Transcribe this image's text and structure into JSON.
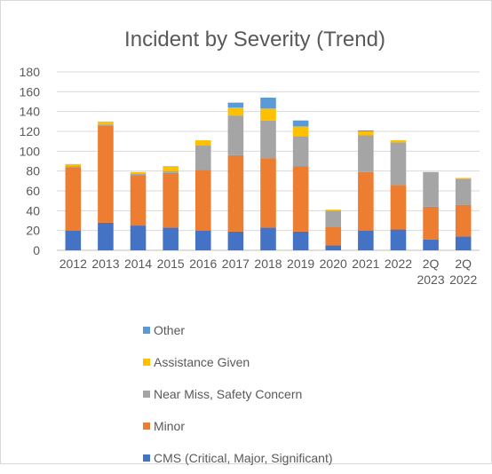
{
  "chart_data": {
    "type": "bar",
    "stacked": true,
    "title": "Incident by Severity (Trend)",
    "xlabel": "",
    "ylabel": "",
    "ylim": [
      0,
      180
    ],
    "y_ticks": [
      0,
      20,
      40,
      60,
      80,
      100,
      120,
      140,
      160,
      180
    ],
    "grid": true,
    "legend_position": "bottom",
    "categories": [
      "2012",
      "2013",
      "2014",
      "2015",
      "2016",
      "2017",
      "2018",
      "2019",
      "2020",
      "2021",
      "2022",
      "2Q 2023",
      "2Q 2022"
    ],
    "series": [
      {
        "name": "CMS (Critical, Major, Significant)",
        "color": "#4472c4",
        "values": [
          20,
          28,
          25,
          23,
          20,
          19,
          23,
          19,
          5,
          20,
          21,
          11,
          14
        ]
      },
      {
        "name": "Minor",
        "color": "#ed7d31",
        "values": [
          64,
          98,
          51,
          55,
          61,
          77,
          70,
          66,
          19,
          59,
          45,
          33,
          32
        ]
      },
      {
        "name": "Near Miss, Safety Concern",
        "color": "#a5a5a5",
        "values": [
          1,
          1,
          1,
          2,
          25,
          40,
          38,
          30,
          16,
          37,
          43,
          35,
          26
        ]
      },
      {
        "name": "Assistance Given",
        "color": "#ffc000",
        "values": [
          2,
          3,
          2,
          5,
          5,
          8,
          12,
          10,
          1,
          4,
          2,
          0,
          1
        ]
      },
      {
        "name": "Other",
        "color": "#5b9bd5",
        "values": [
          0,
          0,
          0,
          0,
          0,
          5,
          11,
          6,
          0,
          1,
          0,
          0,
          0
        ]
      }
    ]
  }
}
